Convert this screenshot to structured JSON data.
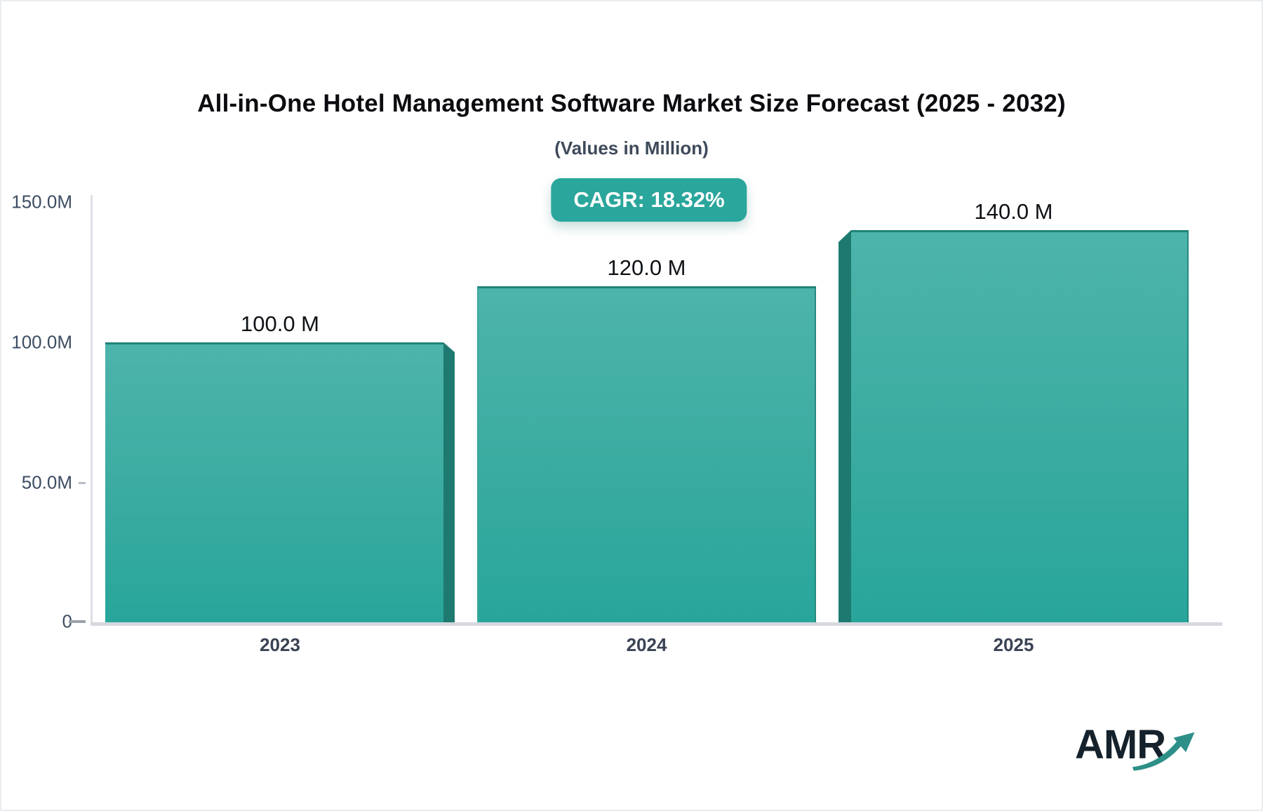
{
  "header": {
    "title": "All-in-One Hotel Management Software Market Size Forecast (2025 - 2032)",
    "subtitle": "(Values in Million)"
  },
  "cagr_badge": {
    "label": "CAGR: 18.32%",
    "background": "#2aa69c",
    "text_color": "#ffffff"
  },
  "chart_data": {
    "type": "bar",
    "title": "All-in-One Hotel Management Software Market Size Forecast (2025 - 2032)",
    "subtitle": "(Values in Million)",
    "unit": "Million",
    "cagr_percent": 18.32,
    "categories": [
      "2023",
      "2024",
      "2025"
    ],
    "values": [
      100.0,
      120.0,
      140.0
    ],
    "value_labels": [
      "100.0 M",
      "120.0 M",
      "140.0 M"
    ],
    "y_tick_labels": [
      "150.0M",
      "100.0M",
      "50.0M",
      "0"
    ],
    "y_tick_values": [
      150,
      100,
      50,
      0
    ],
    "ylim": [
      0,
      150
    ],
    "xlabel": "",
    "ylabel": "",
    "grid": false,
    "legend": false,
    "bar_color_top": "#4db4aa",
    "bar_color_bottom": "#28a69b",
    "bar_edge_color": "#1e7a70"
  },
  "logo": {
    "text": "AMR",
    "text_color": "#15212b",
    "arrow_color": "#2d8f88"
  }
}
